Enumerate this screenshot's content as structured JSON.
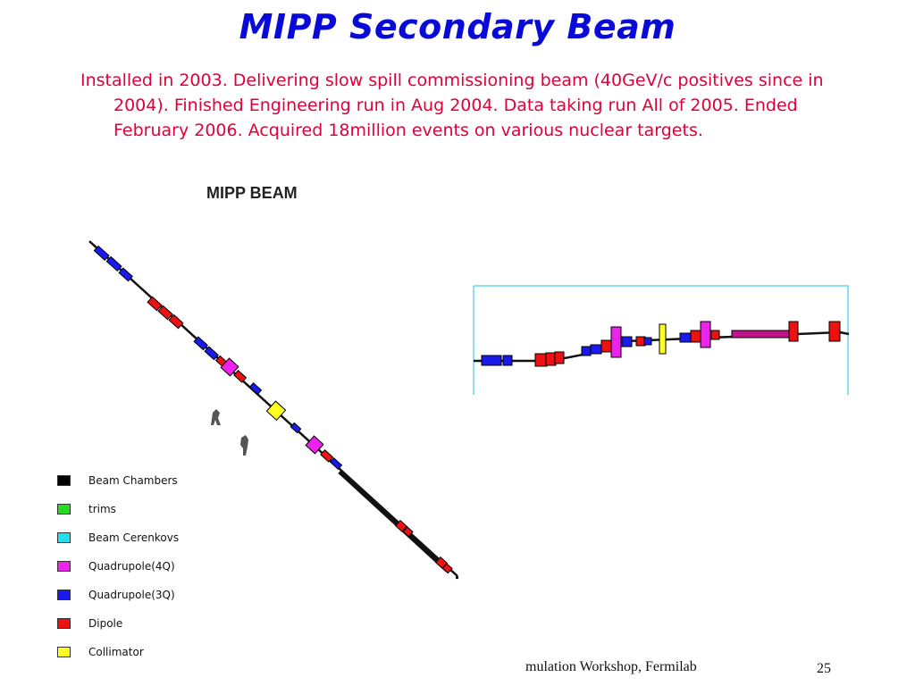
{
  "slide": {
    "title": "MIPP Secondary Beam",
    "body": "Installed in 2003. Delivering slow spill commissioning beam (40GeV/c positives since in 2004).  Finished Engineering run in Aug 2004. Data taking run All of 2005. Ended February 2006. Acquired 18million events on various nuclear targets.",
    "diagram_title": "MIPP BEAM",
    "footer": "mulation Workshop, Fermilab",
    "page_number": "25"
  },
  "legend": [
    {
      "label": "Beam Chambers",
      "color": "#000000"
    },
    {
      "label": "trims",
      "color": "#22dd22"
    },
    {
      "label": "Beam Cerenkovs",
      "color": "#22e0ee"
    },
    {
      "label": "Quadrupole(4Q)",
      "color": "#ee22ee"
    },
    {
      "label": "Quadrupole(3Q)",
      "color": "#1a1aee"
    },
    {
      "label": "Dipole",
      "color": "#ee1111"
    },
    {
      "label": "Collimator",
      "color": "#ffff22"
    }
  ]
}
